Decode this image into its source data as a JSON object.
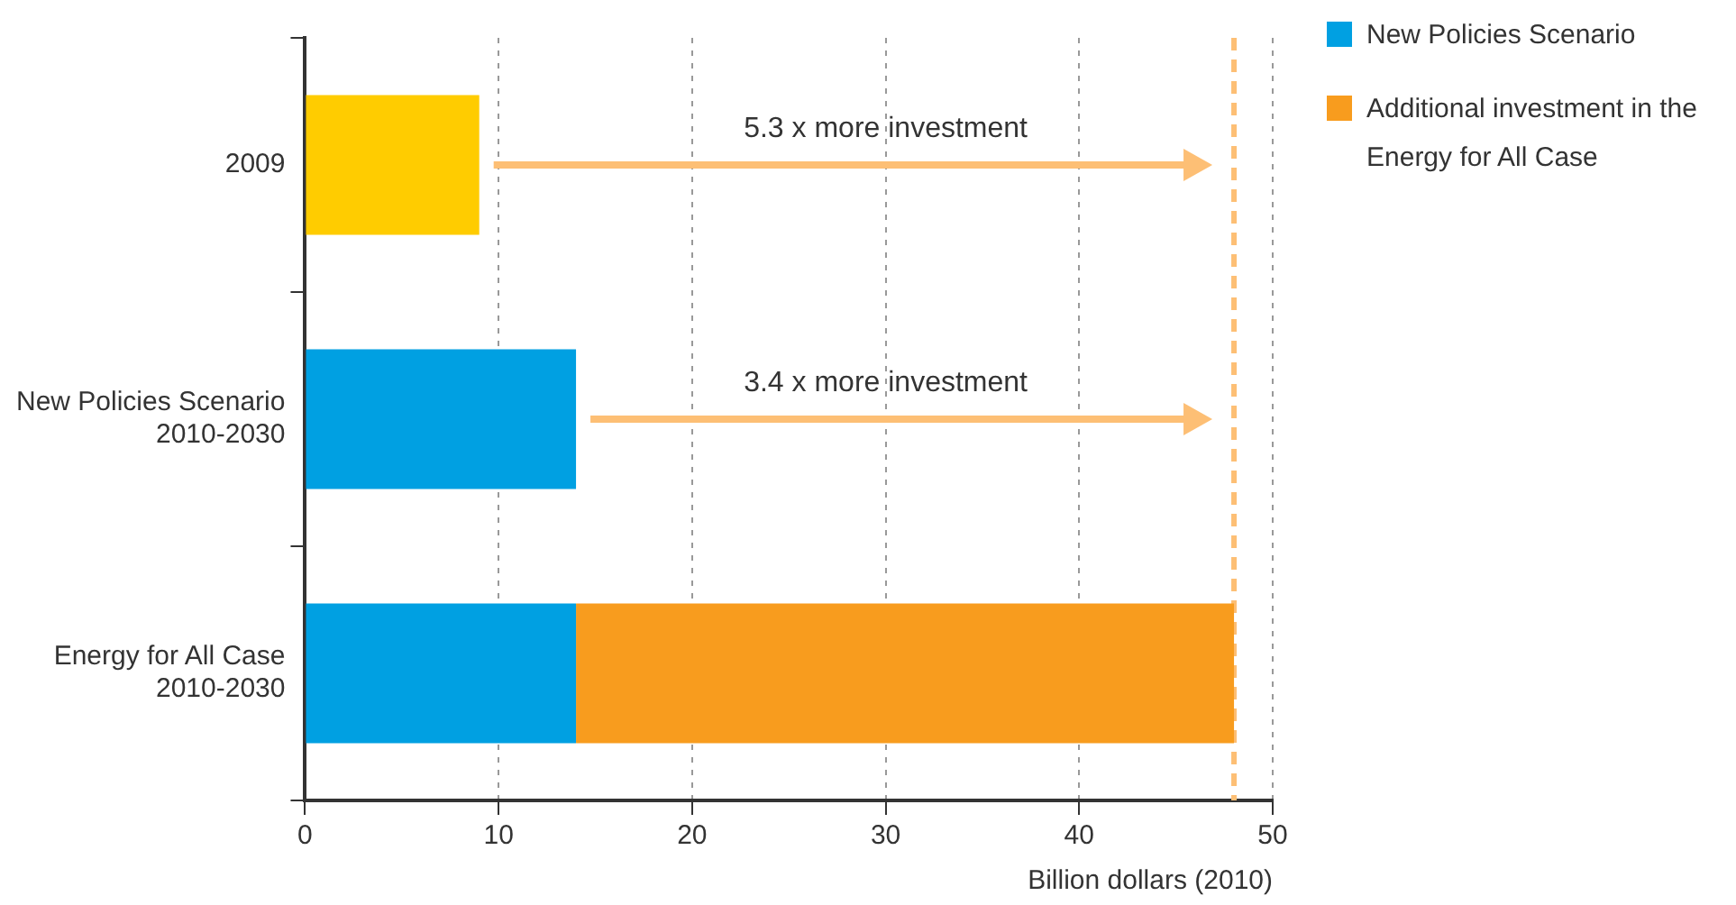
{
  "chart_data": {
    "type": "bar",
    "orientation": "horizontal",
    "stacked": true,
    "categories": [
      "2009",
      "New Policies Scenario\n2010-2030",
      "Energy for All Case\n2010-2030"
    ],
    "series": [
      {
        "name": "New Policies Scenario",
        "color": "#00a0e2",
        "colors": [
          "#ffcc00",
          "#00a0e2",
          "#00a0e2"
        ],
        "values": [
          9,
          14,
          14
        ]
      },
      {
        "name": "Additional investment in the Energy for All Case",
        "color": "#f89c1e",
        "values": [
          null,
          null,
          34
        ]
      }
    ],
    "xlabel": "Billion dollars (2010)",
    "xlim": [
      0,
      50
    ],
    "xticks": [
      0,
      10,
      20,
      30,
      40,
      50
    ],
    "grid": "x",
    "legend": "top right",
    "ref_lines": [
      {
        "axis": "x",
        "value": 48,
        "color": "#fdbf75",
        "line_style": "dashed"
      }
    ],
    "annotations": [
      "5.3 x more investment",
      "3.4 x more investment"
    ]
  }
}
